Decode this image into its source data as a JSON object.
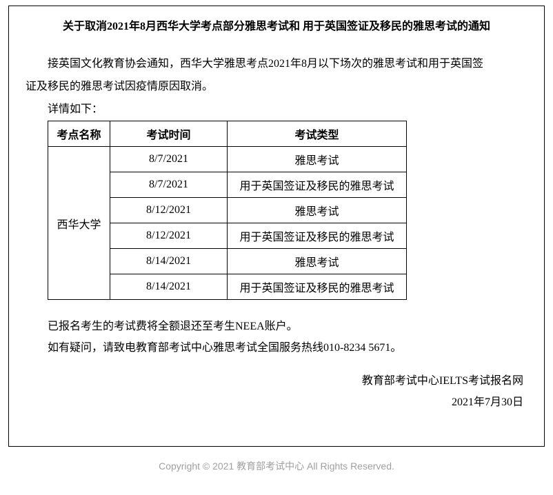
{
  "title": "关于取消2021年8月西华大学考点部分雅思考试和 用于英国签证及移民的雅思考试的通知",
  "intro_line1": "接英国文化教育协会通知，西华大学雅思考点2021年8月以下场次的雅思考试和用于英国签",
  "intro_line2": "证及移民的雅思考试因疫情原因取消。",
  "detail_label": "详情如下：",
  "table": {
    "headers": {
      "site": "考点名称",
      "time": "考试时间",
      "type": "考试类型"
    },
    "site_name": "西华大学",
    "rows": [
      {
        "time": "8/7/2021",
        "type": "雅思考试"
      },
      {
        "time": "8/7/2021",
        "type": "用于英国签证及移民的雅思考试"
      },
      {
        "time": "8/12/2021",
        "type": "雅思考试"
      },
      {
        "time": "8/12/2021",
        "type": "用于英国签证及移民的雅思考试"
      },
      {
        "time": "8/14/2021",
        "type": "雅思考试"
      },
      {
        "time": "8/14/2021",
        "type": "用于英国签证及移民的雅思考试"
      }
    ]
  },
  "note1": "已报名考生的考试费将全额退还至考生NEEA账户。",
  "note2": "如有疑问，请致电教育部考试中心雅思考试全国服务热线010-8234 5671。",
  "signature_org": "教育部考试中心IELTS考试报名网",
  "signature_date": "2021年7月30日",
  "footer": "Copyright © 2021 教育部考试中心 All Rights Reserved."
}
